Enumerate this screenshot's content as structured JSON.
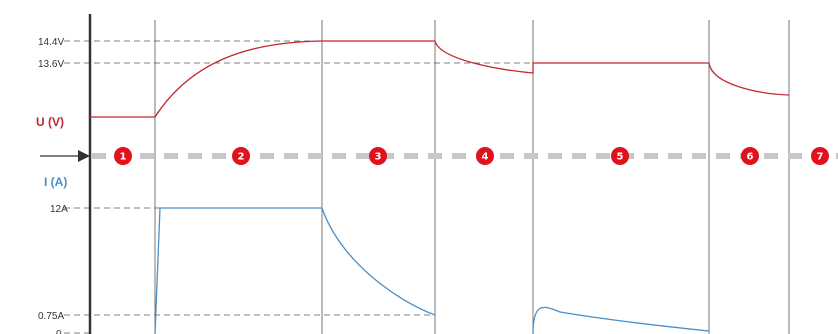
{
  "chart_data": {
    "type": "line",
    "voltage": {
      "label": "U (V)",
      "color": "#c0282e",
      "tick_labels": [
        "14.4V",
        "13.6V"
      ]
    },
    "current": {
      "label": "I (A)",
      "color": "#4a90c8",
      "tick_labels": [
        "12A",
        "0.75A",
        "0"
      ]
    },
    "stages": [
      "1",
      "2",
      "3",
      "4",
      "5",
      "6",
      "7"
    ],
    "stage_color": "#e0121b",
    "grid": true
  }
}
